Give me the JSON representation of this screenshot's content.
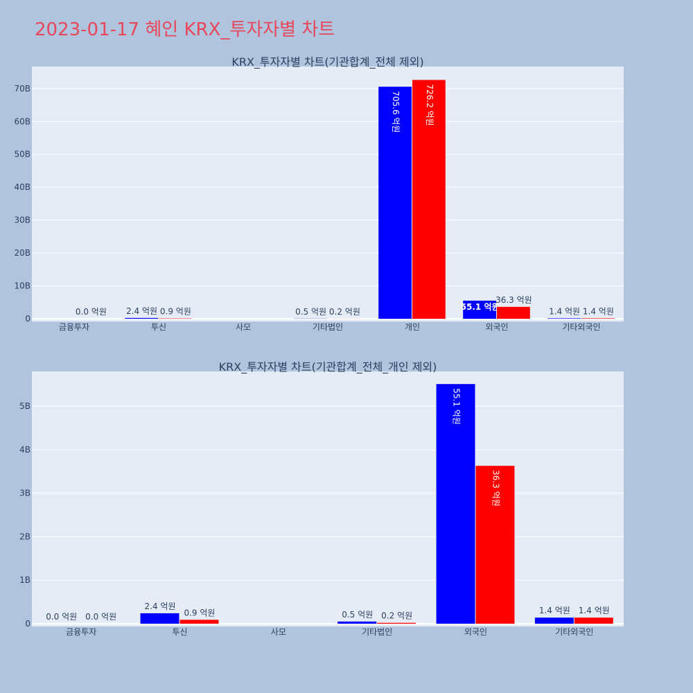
{
  "page_title": "2023-01-17 혜인 KRX_투자자별 차트",
  "colors": {
    "buy": "#0000ff",
    "sell": "#ff0000",
    "plot_bg": "#e5ecf6",
    "page_bg": "#b0c4de"
  },
  "chart_data": [
    {
      "type": "bar",
      "title": "KRX_투자자별 차트(기관합계_전체 제외)",
      "categories": [
        "금융투자",
        "투신",
        "사모",
        "기타법인",
        "개인",
        "외국인",
        "기타외국인"
      ],
      "series": [
        {
          "color": "#0000ff",
          "values": [
            0,
            0.24,
            0,
            0.05,
            70.56,
            5.51,
            0.14
          ],
          "labels": [
            "",
            "2.4 억원",
            "",
            "0.5 억원",
            "705.6 억원",
            "55.1 억원",
            "1.4 억원"
          ]
        },
        {
          "color": "#ff0000",
          "values": [
            0,
            0.09,
            0,
            0.02,
            72.62,
            3.63,
            0.14
          ],
          "labels": [
            "0.0 억원",
            "0.9 억원",
            "",
            "0.2 억원",
            "726.2 억원",
            "36.3 억원",
            "1.4 억원"
          ]
        }
      ],
      "yticks": [
        "0",
        "10B",
        "20B",
        "30B",
        "40B",
        "50B",
        "60B",
        "70B"
      ],
      "ylim": [
        0,
        76.7
      ],
      "grid": true
    },
    {
      "type": "bar",
      "title": "KRX_투자자별 차트(기관합계_전체_개인 제외)",
      "categories": [
        "금융투자",
        "투신",
        "사모",
        "기타법인",
        "외국인",
        "기타외국인"
      ],
      "series": [
        {
          "color": "#0000ff",
          "values": [
            0,
            0.24,
            0,
            0.05,
            5.51,
            0.14
          ],
          "labels": [
            "0.0 억원",
            "2.4 억원",
            "",
            "0.5 억원",
            "55.1 억원",
            "1.4 억원"
          ]
        },
        {
          "color": "#ff0000",
          "values": [
            0,
            0.09,
            0,
            0.02,
            3.63,
            0.14
          ],
          "labels": [
            "0.0 억원",
            "0.9 억원",
            "",
            "0.2 억원",
            "36.3 억원",
            "1.4 억원"
          ]
        }
      ],
      "yticks": [
        "0",
        "1B",
        "2B",
        "3B",
        "4B",
        "5B"
      ],
      "ylim": [
        0,
        5.8
      ],
      "grid": true
    }
  ]
}
